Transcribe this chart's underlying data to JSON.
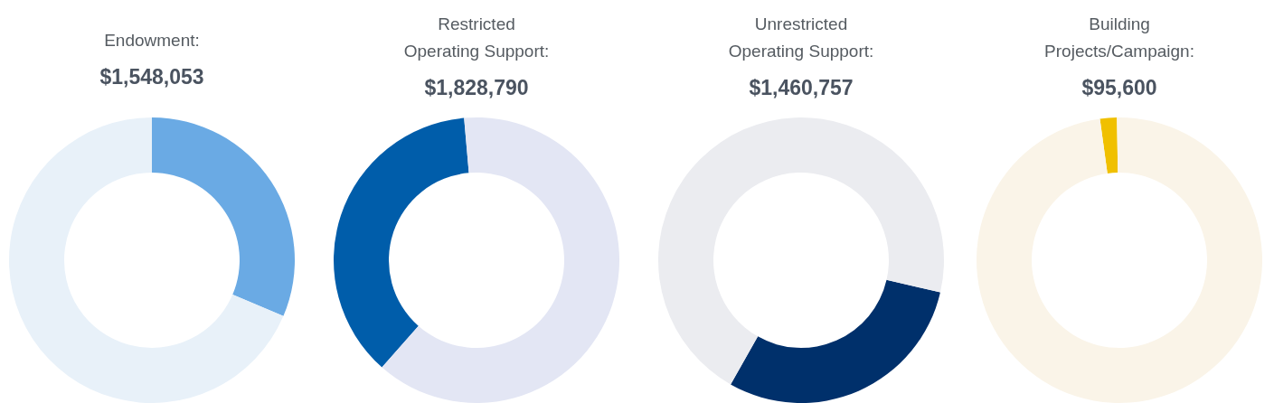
{
  "chart_data": [
    {
      "type": "donut",
      "title": "Endowment:",
      "subtitle": "$1,548,053",
      "categories": [
        null,
        null
      ],
      "values": [
        31.4,
        68.6
      ],
      "colors": [
        "#6aaae4",
        "#e8f1f9"
      ]
    },
    {
      "type": "donut",
      "title": "Restricted\nOperating Support:",
      "subtitle": "$1,828,790",
      "categories": [
        null,
        null
      ],
      "values": [
        37.1,
        62.9
      ],
      "colors": [
        "#005daa",
        "#e3e6f4"
      ]
    },
    {
      "type": "donut",
      "title": "Unrestricted\nOperating Support:",
      "subtitle": "$1,460,757",
      "categories": [
        null,
        null
      ],
      "values": [
        29.6,
        70.4
      ],
      "colors": [
        "#00306b",
        "#ebecf0"
      ]
    },
    {
      "type": "donut",
      "title": "Building\nProjects/Campaign:",
      "subtitle": "$95,600",
      "categories": [
        null,
        null
      ],
      "values": [
        1.9,
        98.1
      ],
      "colors": [
        "#f0c000",
        "#faf4e8"
      ]
    }
  ]
}
